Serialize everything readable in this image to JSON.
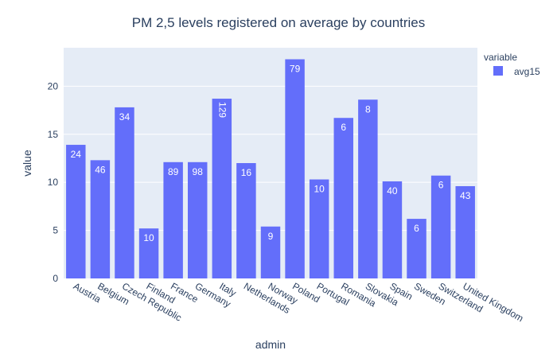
{
  "chart_data": {
    "type": "bar",
    "title": "PM 2,5 levels registered on average by countries",
    "xlabel": "admin",
    "ylabel": "value",
    "ylim": [
      0,
      24
    ],
    "yticks": [
      0,
      5,
      10,
      15,
      20
    ],
    "grid": true,
    "legend_position": "top-right",
    "legend_title": "variable",
    "categories": [
      "Austria",
      "Belgium",
      "Czech Republic",
      "Finland",
      "France",
      "Germany",
      "Italy",
      "Netherlands",
      "Norway",
      "Poland",
      "Portugal",
      "Romania",
      "Slovakia",
      "Spain",
      "Sweden",
      "Switzerland",
      "United Kingdom"
    ],
    "series": [
      {
        "name": "avg15",
        "color": "#636efa",
        "values": [
          13.9,
          12.3,
          17.8,
          5.2,
          12.1,
          12.1,
          18.7,
          12.0,
          5.4,
          22.8,
          10.3,
          16.7,
          18.6,
          10.1,
          6.2,
          10.7,
          9.6
        ],
        "text": [
          "24",
          "46",
          "34",
          "10",
          "89",
          "98",
          "129",
          "16",
          "9",
          "79",
          "10",
          "6",
          "8",
          "40",
          "6",
          "6",
          "43"
        ]
      }
    ]
  }
}
